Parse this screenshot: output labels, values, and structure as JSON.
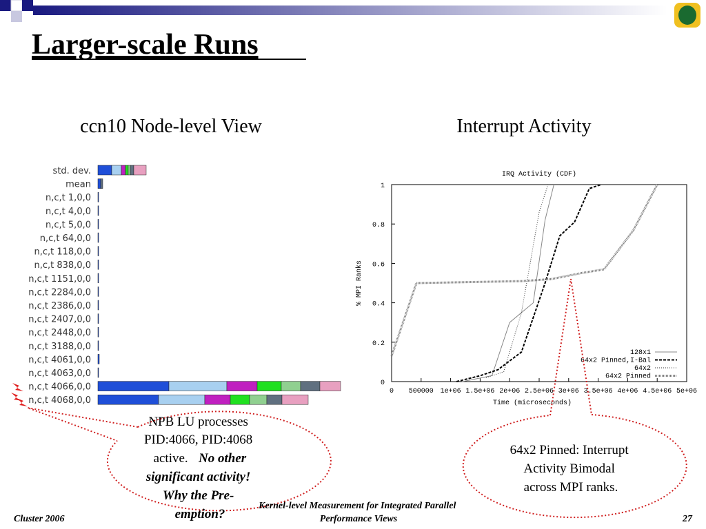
{
  "title": "Larger-scale Runs",
  "left_heading": "ccn10 Node-level View",
  "right_heading": "Interrupt Activity",
  "chart_data": [
    {
      "type": "hbar-stacked",
      "categories": [
        "std. dev.",
        "mean",
        "n,c,t 1,0,0",
        "n,c,t 4,0,0",
        "n,c,t 5,0,0",
        "n,c,t 64,0,0",
        "n,c,t 118,0,0",
        "n,c,t 838,0,0",
        "n,c,t 1151,0,0",
        "n,c,t 2284,0,0",
        "n,c,t 2386,0,0",
        "n,c,t 2407,0,0",
        "n,c,t 2448,0,0",
        "n,c,t 3188,0,0",
        "n,c,t 4061,0,0",
        "n,c,t 4063,0,0",
        "n,c,t 4066,0,0",
        "n,c,t 4068,0,0"
      ],
      "xlim": [
        0,
        365
      ],
      "series": [
        {
          "color": "#1f4fd8",
          "values": [
            20,
            4,
            1,
            1,
            1,
            1,
            1,
            1,
            1,
            1,
            1,
            1,
            1,
            1,
            2,
            1,
            103,
            88
          ]
        },
        {
          "color": "#a8d0f0",
          "values": [
            14,
            0,
            0,
            0,
            0,
            0,
            0,
            0,
            0,
            0,
            0,
            0,
            0,
            0,
            0,
            0,
            84,
            67
          ]
        },
        {
          "color": "#c020c0",
          "values": [
            6,
            0,
            0,
            0,
            0,
            0,
            0,
            0,
            0,
            0,
            0,
            0,
            0,
            0,
            0,
            0,
            44,
            37
          ]
        },
        {
          "color": "#20e020",
          "values": [
            4,
            0,
            0,
            0,
            0,
            0,
            0,
            0,
            0,
            0,
            0,
            0,
            0,
            0,
            0,
            0,
            35,
            28
          ]
        },
        {
          "color": "#90d090",
          "values": [
            3,
            0,
            0,
            0,
            0,
            0,
            0,
            0,
            0,
            0,
            0,
            0,
            0,
            0,
            0,
            0,
            28,
            25
          ]
        },
        {
          "color": "#607080",
          "values": [
            5,
            3,
            0,
            0,
            0,
            0,
            0,
            0,
            0,
            0,
            0,
            0,
            0,
            0,
            0,
            0,
            28,
            22
          ]
        },
        {
          "color": "#e8a0c0",
          "values": [
            18,
            0,
            0,
            0,
            0,
            0,
            0,
            0,
            0,
            0,
            0,
            0,
            0,
            0,
            0,
            0,
            30,
            38
          ]
        }
      ]
    },
    {
      "type": "line",
      "title": "IRQ Activity (CDF)",
      "xlabel": "Time (microseconds)",
      "ylabel": "% MPI Ranks",
      "xlim": [
        0,
        5000000
      ],
      "xticks": [
        0,
        500000,
        {
          "value": 1000000,
          "label": "1e+06"
        },
        {
          "value": 1500000,
          "label": "1.5e+06"
        },
        {
          "value": 2000000,
          "label": "2e+06"
        },
        {
          "value": 2500000,
          "label": "2.5e+06"
        },
        {
          "value": 3000000,
          "label": "3e+06"
        },
        {
          "value": 3500000,
          "label": "3.5e+06"
        },
        {
          "value": 4000000,
          "label": "4e+06"
        },
        {
          "value": 4500000,
          "label": "4.5e+06"
        },
        {
          "value": 5000000,
          "label": "5e+06"
        }
      ],
      "ylim": [
        0,
        1
      ],
      "yticks": [
        0,
        0.2,
        0.4,
        0.6,
        0.8,
        1
      ],
      "legend": "lower right",
      "series": [
        {
          "name": "128x1",
          "color": "#888888",
          "style": "solid",
          "x": [
            1200000,
            1700000,
            2000000,
            2400000,
            2600000,
            2750000
          ],
          "values": [
            0,
            0.03,
            0.3,
            0.4,
            0.82,
            1
          ]
        },
        {
          "name": "64x2 Pinned,I-Bal",
          "color": "#000000",
          "style": "dashed",
          "x": [
            1100000,
            1500000,
            1800000,
            2200000,
            2600000,
            2850000,
            3100000,
            3350000,
            3550000
          ],
          "values": [
            0,
            0.03,
            0.06,
            0.15,
            0.5,
            0.74,
            0.81,
            0.98,
            1
          ]
        },
        {
          "name": "64x2",
          "color": "#333333",
          "style": "dotted",
          "x": [
            1600000,
            1900000,
            2200000,
            2500000,
            2650000
          ],
          "values": [
            0.02,
            0.05,
            0.35,
            0.86,
            1
          ]
        },
        {
          "name": "64x2 Pinned",
          "color": "#777777",
          "style": "thick",
          "x": [
            0,
            420000,
            2200000,
            2700000,
            3200000,
            3600000,
            4100000,
            4500000
          ],
          "values": [
            0.13,
            0.5,
            0.51,
            0.52,
            0.55,
            0.57,
            0.77,
            1
          ]
        }
      ]
    }
  ],
  "callouts": [
    {
      "text": [
        "NPB LU processes",
        "PID:4066, PID:4068",
        "active."
      ],
      "emphasis": [
        "No other",
        "significant activity!",
        "Why the Pre-",
        "emption?"
      ]
    },
    {
      "text": [
        "64x2 Pinned: Interrupt",
        "Activity Bimodal",
        "across MPI ranks."
      ]
    }
  ],
  "footer": {
    "left": "Cluster 2006",
    "center": [
      "Kernel-level Measurement for Integrated Parallel",
      "Performance Views"
    ],
    "page": "27"
  }
}
